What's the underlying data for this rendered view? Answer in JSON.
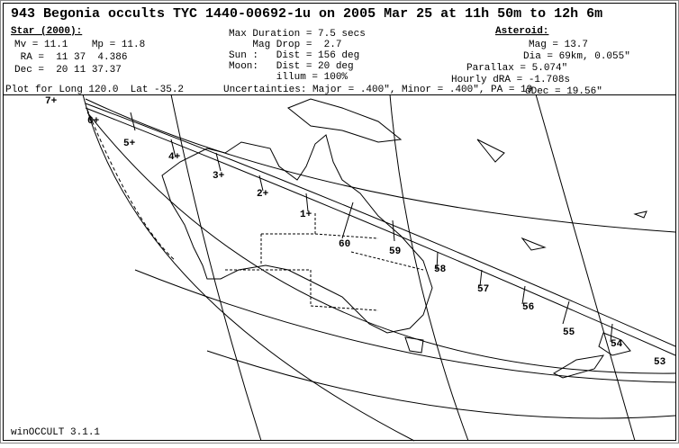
{
  "header": {
    "title": "943 Begonia occults TYC 1440-00692-1u on 2005 Mar 25 at 11h 50m to 12h 6m",
    "star": {
      "heading": "Star (2000):",
      "lines": [
        "Mv = 11.1    Mp = 11.8",
        " RA =  11 37  4.386",
        "Dec =  20 11 37.37"
      ]
    },
    "event": {
      "lines": [
        "Max Duration = 7.5 secs",
        "    Mag Drop =  2.7",
        "Sun :   Dist = 156 deg",
        "Moon:   Dist = 20 deg",
        "        illum = 100%"
      ]
    },
    "asteroid": {
      "heading": "Asteroid:",
      "lines": [
        "Mag = 13.7",
        "Dia = 69km, 0.055\"",
        "Parallax = 5.074\"",
        "Hourly dRA = -1.708s",
        "dDec = 19.56\""
      ]
    },
    "plot_for": "Plot for Long 120.0  Lat -35.2",
    "uncertainties": "Uncertainties: Major = .400\", Minor = .400\", PA = 19"
  },
  "map": {
    "time_labels": [
      "7+",
      "6+",
      "5+",
      "4+",
      "3+",
      "2+",
      "1+",
      "60",
      "59",
      "58",
      "57",
      "56",
      "55",
      "54",
      "53"
    ]
  },
  "footer": "winOCCULT 3.1.1"
}
